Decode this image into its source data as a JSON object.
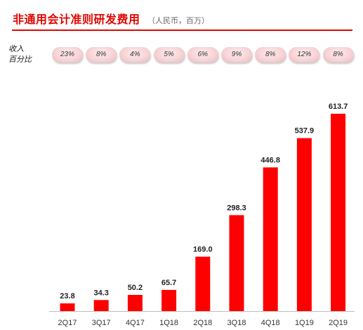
{
  "header": {
    "title": "非通用会计准则研发费用",
    "unit": "（人民币，百万）"
  },
  "percent_row": {
    "label_line1": "收入",
    "label_line2": "百分比",
    "values": [
      "23%",
      "8%",
      "4%",
      "5%",
      "6%",
      "9%",
      "8%",
      "12%",
      "8%"
    ]
  },
  "colors": {
    "accent": "#e10600",
    "bar": "#ff0000",
    "pill": "#f7d4d6"
  },
  "chart_data": {
    "type": "bar",
    "title": "非通用会计准则研发费用",
    "xlabel": "",
    "ylabel": "",
    "categories": [
      "2Q17",
      "3Q17",
      "4Q17",
      "1Q18",
      "2Q18",
      "3Q18",
      "4Q18",
      "1Q19",
      "2Q19"
    ],
    "values": [
      23.8,
      34.3,
      50.2,
      65.7,
      169.0,
      298.3,
      446.8,
      537.9,
      613.7
    ],
    "value_labels": [
      "23.8",
      "34.3",
      "50.2",
      "65.7",
      "169.0",
      "298.3",
      "446.8",
      "537.9",
      "613.7"
    ],
    "ylim": [
      0,
      650
    ],
    "grid": false,
    "legend": "none"
  }
}
